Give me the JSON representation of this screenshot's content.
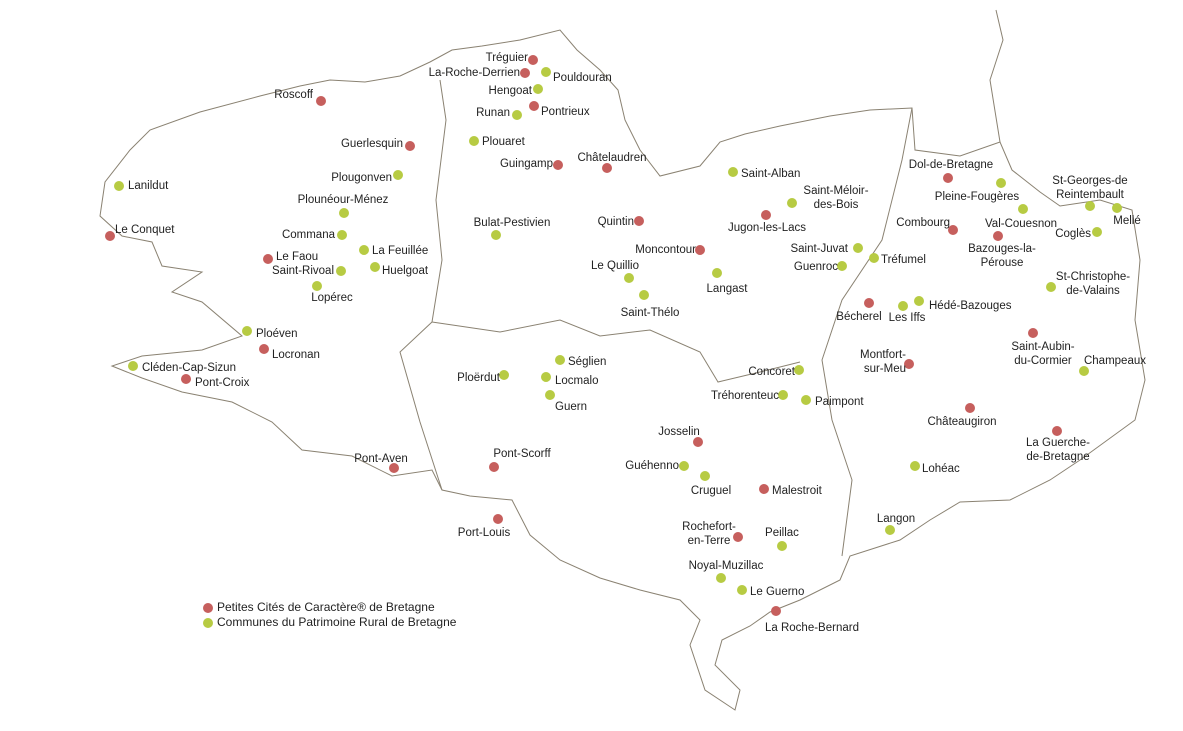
{
  "colors": {
    "petites_cites": "#c65f5d",
    "communes_rurales": "#b7cb43",
    "outline": "#8a8272"
  },
  "legend": [
    {
      "key": "r",
      "label": "Petites Cités de Caractère® de Bretagne"
    },
    {
      "key": "g",
      "label": "Communes du Patrimoine Rural de Bretagne"
    }
  ],
  "places": [
    {
      "name": "Tréguier",
      "type": "r"
    },
    {
      "name": "La-Roche-Derrien",
      "type": "r"
    },
    {
      "name": "Pouldouran",
      "type": "g"
    },
    {
      "name": "Hengoat",
      "type": "g"
    },
    {
      "name": "Runan",
      "type": "g"
    },
    {
      "name": "Pontrieux",
      "type": "r"
    },
    {
      "name": "Roscoff",
      "type": "r"
    },
    {
      "name": "Guerlesquin",
      "type": "r"
    },
    {
      "name": "Plouaret",
      "type": "g"
    },
    {
      "name": "Guingamp",
      "type": "r"
    },
    {
      "name": "Châtelaudren",
      "type": "r"
    },
    {
      "name": "Saint-Alban",
      "type": "g"
    },
    {
      "name": "Plougonven",
      "type": "g"
    },
    {
      "name": "Lanildut",
      "type": "g"
    },
    {
      "name": "Plounéour-Ménez",
      "type": "g"
    },
    {
      "name": "Saint-Méloir-|des-Bois",
      "type": "g"
    },
    {
      "name": "Le Conquet",
      "type": "r"
    },
    {
      "name": "Bulat-Pestivien",
      "type": "g"
    },
    {
      "name": "Quintin",
      "type": "r"
    },
    {
      "name": "Jugon-les-Lacs",
      "type": "r"
    },
    {
      "name": "Dol-de-Bretagne",
      "type": "r"
    },
    {
      "name": "Pleine-Fougères",
      "type": "g"
    },
    {
      "name": "St-Georges-de|Reintembault",
      "type": "g"
    },
    {
      "name": "Mellé",
      "type": "g"
    },
    {
      "name": "Val-Couesnon",
      "type": "g"
    },
    {
      "name": "Combourg",
      "type": "r"
    },
    {
      "name": "Coglès",
      "type": "g"
    },
    {
      "name": "Bazouges-la-|Pérouse",
      "type": "r"
    },
    {
      "name": "Commana",
      "type": "g"
    },
    {
      "name": "La Feuillée",
      "type": "g"
    },
    {
      "name": "Le Faou",
      "type": "r"
    },
    {
      "name": "Saint-Rivoal",
      "type": "g"
    },
    {
      "name": "Huelgoat",
      "type": "g"
    },
    {
      "name": "Lopérec",
      "type": "g"
    },
    {
      "name": "Moncontour",
      "type": "r"
    },
    {
      "name": "Le Quillio",
      "type": "g"
    },
    {
      "name": "Langast",
      "type": "g"
    },
    {
      "name": "Saint-Juvat",
      "type": "g"
    },
    {
      "name": "Tréfumel",
      "type": "g"
    },
    {
      "name": "Guenroc",
      "type": "g"
    },
    {
      "name": "Saint-Thélo",
      "type": "g"
    },
    {
      "name": "Bécherel",
      "type": "r"
    },
    {
      "name": "Les Iffs",
      "type": "g"
    },
    {
      "name": "Hédé-Bazouges",
      "type": "g"
    },
    {
      "name": "St-Christophe-|de-Valains",
      "type": "g"
    },
    {
      "name": "Ploéven",
      "type": "g"
    },
    {
      "name": "Locronan",
      "type": "r"
    },
    {
      "name": "Cléden-Cap-Sizun",
      "type": "g"
    },
    {
      "name": "Pont-Croix",
      "type": "r"
    },
    {
      "name": "Saint-Aubin-|du-Cormier",
      "type": "r"
    },
    {
      "name": "Champeaux",
      "type": "g"
    },
    {
      "name": "Montfort-|sur-Meu",
      "type": "r"
    },
    {
      "name": "Séglien",
      "type": "g"
    },
    {
      "name": "Ploërdut",
      "type": "g"
    },
    {
      "name": "Locmalo",
      "type": "g"
    },
    {
      "name": "Guern",
      "type": "g"
    },
    {
      "name": "Concoret",
      "type": "g"
    },
    {
      "name": "Tréhorenteuc",
      "type": "g"
    },
    {
      "name": "Paimpont",
      "type": "g"
    },
    {
      "name": "Châteaugiron",
      "type": "r"
    },
    {
      "name": "La Guerche-|de-Bretagne",
      "type": "r"
    },
    {
      "name": "Josselin",
      "type": "r"
    },
    {
      "name": "Pont-Aven",
      "type": "r"
    },
    {
      "name": "Pont-Scorff",
      "type": "r"
    },
    {
      "name": "Guéhenno",
      "type": "g"
    },
    {
      "name": "Cruguel",
      "type": "g"
    },
    {
      "name": "Malestroit",
      "type": "r"
    },
    {
      "name": "Lohéac",
      "type": "g"
    },
    {
      "name": "Port-Louis",
      "type": "r"
    },
    {
      "name": "Langon",
      "type": "g"
    },
    {
      "name": "Rochefort-|en-Terre",
      "type": "r"
    },
    {
      "name": "Peillac",
      "type": "g"
    },
    {
      "name": "Noyal-Muzillac",
      "type": "g"
    },
    {
      "name": "Le Guerno",
      "type": "g"
    },
    {
      "name": "La Roche-Bernard",
      "type": "r"
    }
  ]
}
